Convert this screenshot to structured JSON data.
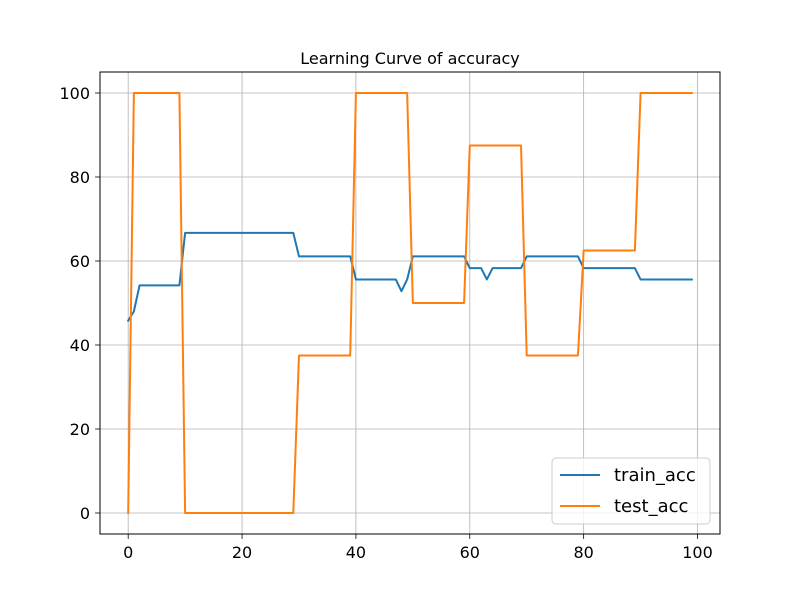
{
  "chart_data": {
    "type": "line",
    "title": "Learning Curve of accuracy",
    "xlabel": "",
    "ylabel": "",
    "xlim": [
      -4.95,
      103.95
    ],
    "ylim": [
      -5,
      105
    ],
    "xticks": [
      0,
      20,
      40,
      60,
      80,
      100
    ],
    "yticks": [
      0,
      20,
      40,
      60,
      80,
      100
    ],
    "grid": true,
    "legend_position": "bottom-right",
    "series": [
      {
        "name": "train_acc",
        "color": "#1f77b4",
        "x": [
          0,
          1,
          2,
          9,
          10,
          29,
          30,
          39,
          40,
          47,
          48,
          49,
          50,
          59,
          60,
          62,
          63,
          64,
          69,
          70,
          79,
          80,
          89,
          90,
          99
        ],
        "y": [
          45.8,
          48,
          54.2,
          54.2,
          66.7,
          66.7,
          61.1,
          61.1,
          55.6,
          55.6,
          52.8,
          55.6,
          61.1,
          61.1,
          58.3,
          58.3,
          55.6,
          58.3,
          58.3,
          61.1,
          61.1,
          58.3,
          58.3,
          55.6,
          55.6
        ]
      },
      {
        "name": "test_acc",
        "color": "#ff7f0e",
        "x": [
          0,
          1,
          9,
          10,
          29,
          30,
          39,
          40,
          49,
          50,
          59,
          60,
          69,
          70,
          79,
          80,
          89,
          90,
          99
        ],
        "y": [
          0,
          100,
          100,
          0,
          0,
          37.5,
          37.5,
          100,
          100,
          50,
          50,
          87.5,
          87.5,
          37.5,
          37.5,
          62.5,
          62.5,
          100,
          100
        ]
      }
    ]
  }
}
